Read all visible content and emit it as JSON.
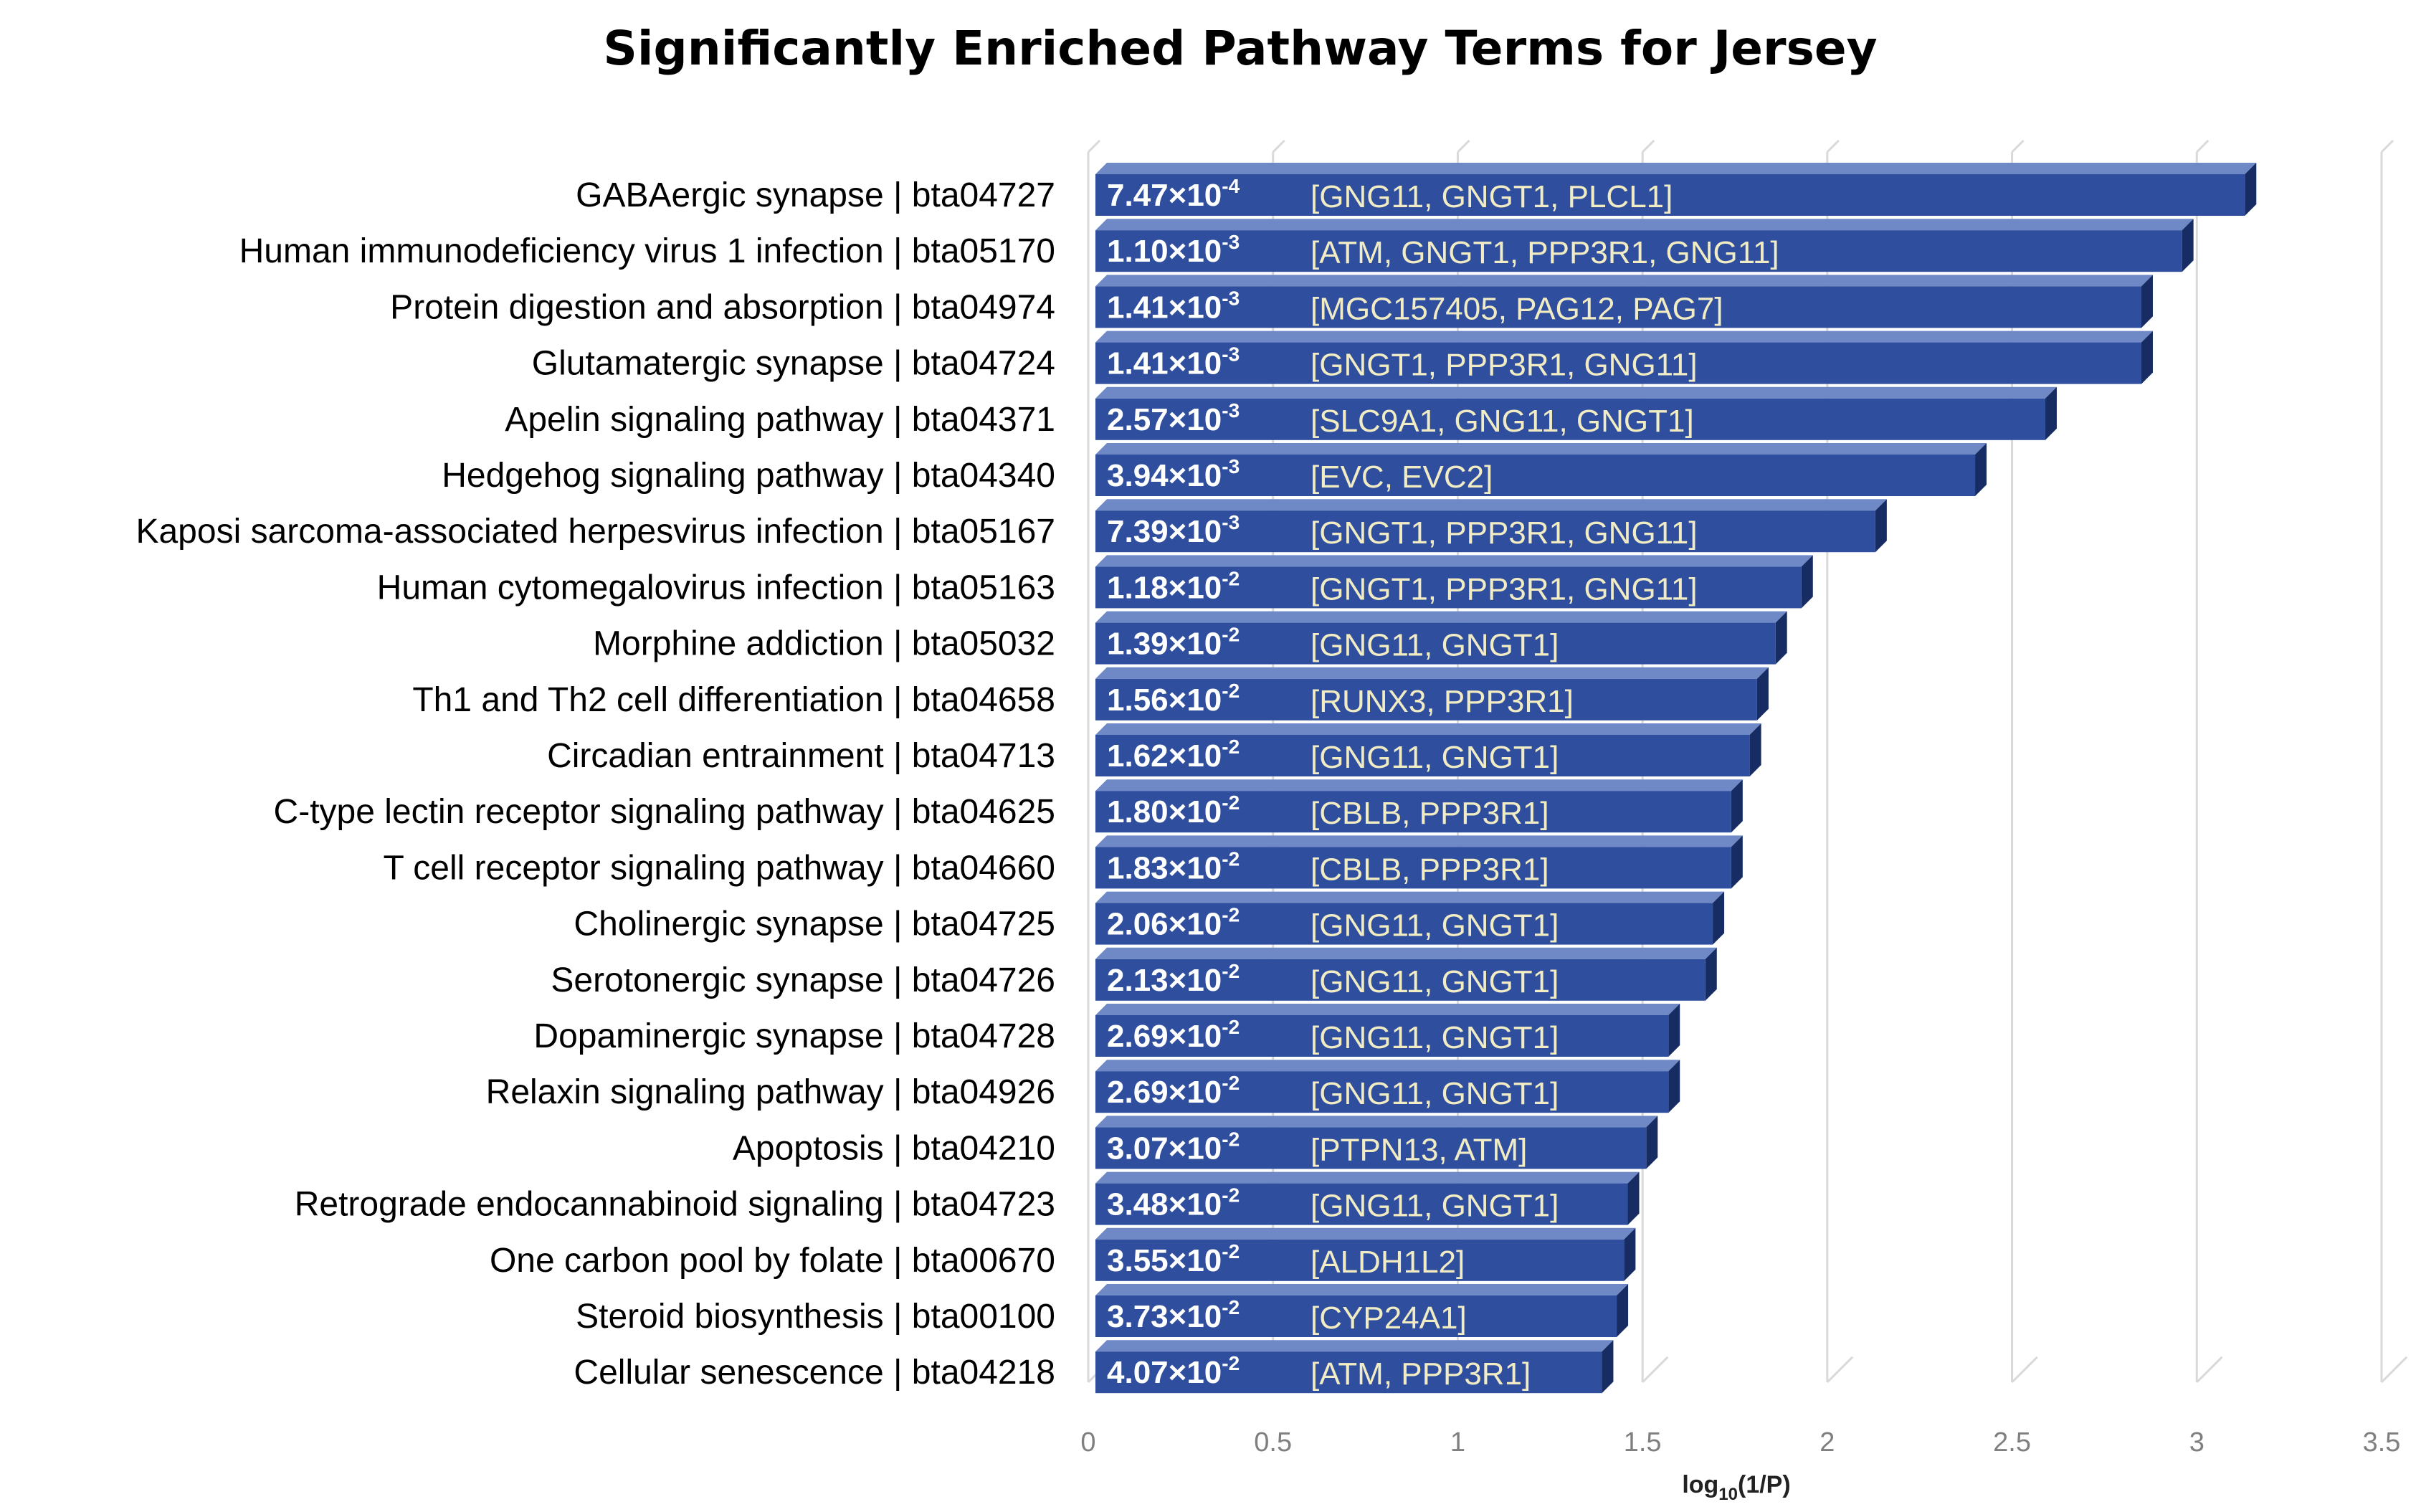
{
  "chart_data": {
    "type": "bar",
    "orientation": "horizontal",
    "title": "Significantly Enriched Pathway Terms for Jersey",
    "xlabel_main": "log",
    "xlabel_sub": "10",
    "xlabel_tail": "(1/P)",
    "xlim": [
      0,
      3.5
    ],
    "xticks": [
      "0",
      "0.5",
      "1",
      "1.5",
      "2",
      "2.5",
      "3",
      "3.5"
    ],
    "grid": "vertical",
    "bar_color": "#2f4f9e",
    "bar_side_color": "#172c63",
    "bar_top_color": "#6f89c6",
    "label_color": "#ffffff",
    "gene_color": "#f1ecc4",
    "categories": [
      "GABAergic synapse | bta04727",
      "Human immunodeficiency virus 1 infection | bta05170",
      "Protein digestion and absorption | bta04974",
      "Glutamatergic synapse | bta04724",
      "Apelin signaling pathway | bta04371",
      "Hedgehog signaling pathway | bta04340",
      "Kaposi sarcoma-associated herpesvirus infection | bta05167",
      "Human cytomegalovirus infection | bta05163",
      "Morphine addiction | bta05032",
      "Th1 and Th2 cell differentiation | bta04658",
      "Circadian entrainment | bta04713",
      "C-type lectin receptor signaling pathway | bta04625",
      "T cell receptor signaling pathway | bta04660",
      "Cholinergic synapse | bta04725",
      "Serotonergic synapse | bta04726",
      "Dopaminergic synapse | bta04728",
      "Relaxin signaling pathway | bta04926",
      "Apoptosis | bta04210",
      "Retrograde endocannabinoid signaling | bta04723",
      "One carbon pool by folate | bta00670",
      "Steroid biosynthesis | bta00100",
      "Cellular senescence | bta04218"
    ],
    "values": [
      3.13,
      2.96,
      2.85,
      2.85,
      2.59,
      2.4,
      2.13,
      1.93,
      1.86,
      1.81,
      1.79,
      1.74,
      1.74,
      1.69,
      1.67,
      1.57,
      1.57,
      1.51,
      1.46,
      1.45,
      1.43,
      1.39
    ],
    "p_mantissa": [
      "7.47",
      "1.10",
      "1.41",
      "1.41",
      "2.57",
      "3.94",
      "7.39",
      "1.18",
      "1.39",
      "1.56",
      "1.62",
      "1.80",
      "1.83",
      "2.06",
      "2.13",
      "2.69",
      "2.69",
      "3.07",
      "3.48",
      "3.55",
      "3.73",
      "4.07"
    ],
    "p_exponent": [
      "-4",
      "-3",
      "-3",
      "-3",
      "-3",
      "-3",
      "-3",
      "-2",
      "-2",
      "-2",
      "-2",
      "-2",
      "-2",
      "-2",
      "-2",
      "-2",
      "-2",
      "-2",
      "-2",
      "-2",
      "-2",
      "-2"
    ],
    "genes": [
      "[GNG11, GNGT1, PLCL1]",
      "[ATM, GNGT1, PPP3R1, GNG11]",
      "[MGC157405, PAG12, PAG7]",
      "[GNGT1, PPP3R1, GNG11]",
      "[SLC9A1, GNG11, GNGT1]",
      "[EVC, EVC2]",
      "[GNGT1, PPP3R1, GNG11]",
      "[GNGT1, PPP3R1, GNG11]",
      "[GNG11, GNGT1]",
      "[RUNX3, PPP3R1]",
      "[GNG11, GNGT1]",
      "[CBLB, PPP3R1]",
      "[CBLB, PPP3R1]",
      "[GNG11, GNGT1]",
      "[GNG11, GNGT1]",
      "[GNG11, GNGT1]",
      "[GNG11, GNGT1]",
      "[PTPN13, ATM]",
      "[GNG11, GNGT1]",
      "[ALDH1L2]",
      "[CYP24A1]",
      "[ATM, PPP3R1]"
    ]
  }
}
